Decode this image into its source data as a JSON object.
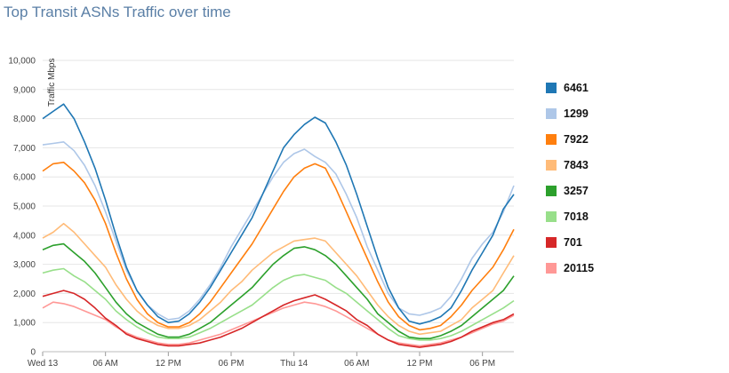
{
  "chart_data": {
    "type": "line",
    "title": "Top Transit ASNs Traffic over time",
    "ylabel": "Traffic Mbps",
    "xlabel": "",
    "ylim": [
      0,
      10000
    ],
    "yticks": [
      0,
      1000,
      2000,
      3000,
      4000,
      5000,
      6000,
      7000,
      8000,
      9000,
      10000
    ],
    "ytick_labels": [
      "0",
      "1,000",
      "2,000",
      "3,000",
      "4,000",
      "5,000",
      "6,000",
      "7,000",
      "8,000",
      "9,000",
      "10,000"
    ],
    "x_hours": [
      0,
      6,
      12,
      18,
      24,
      30,
      36,
      42
    ],
    "x_tick_labels": [
      "Wed 13",
      "06 AM",
      "12 PM",
      "06 PM",
      "Thu 14",
      "06 AM",
      "12 PM",
      "06 PM"
    ],
    "x": [
      0,
      1,
      2,
      3,
      4,
      5,
      6,
      7,
      8,
      9,
      10,
      11,
      12,
      13,
      14,
      15,
      16,
      17,
      18,
      19,
      20,
      21,
      22,
      23,
      24,
      25,
      26,
      27,
      28,
      29,
      30,
      31,
      32,
      33,
      34,
      35,
      36,
      37,
      38,
      39,
      40,
      41,
      42,
      43,
      44,
      45
    ],
    "grid": true,
    "legend_position": "right",
    "series": [
      {
        "name": "6461",
        "color": "#1f77b4",
        "values": [
          8000,
          8250,
          8500,
          8000,
          7200,
          6300,
          5200,
          4000,
          2900,
          2100,
          1600,
          1200,
          1000,
          1050,
          1300,
          1700,
          2200,
          2800,
          3400,
          4000,
          4600,
          5400,
          6200,
          7000,
          7450,
          7800,
          8050,
          7850,
          7200,
          6400,
          5400,
          4300,
          3200,
          2200,
          1500,
          1050,
          950,
          1050,
          1200,
          1500,
          2100,
          2800,
          3400,
          4000,
          4900,
          5400
        ]
      },
      {
        "name": "1299",
        "color": "#aec7e8",
        "values": [
          7100,
          7150,
          7200,
          6900,
          6400,
          5700,
          4800,
          3800,
          2800,
          2100,
          1600,
          1300,
          1100,
          1150,
          1400,
          1800,
          2300,
          2900,
          3600,
          4200,
          4800,
          5400,
          6000,
          6500,
          6800,
          6950,
          6700,
          6500,
          6100,
          5400,
          4600,
          3600,
          2800,
          2000,
          1500,
          1300,
          1250,
          1350,
          1500,
          1900,
          2500,
          3200,
          3700,
          4100,
          4800,
          5700
        ]
      },
      {
        "name": "7922",
        "color": "#ff7f0e",
        "values": [
          6200,
          6450,
          6500,
          6200,
          5800,
          5200,
          4400,
          3400,
          2500,
          1800,
          1300,
          1000,
          850,
          850,
          1000,
          1300,
          1700,
          2200,
          2700,
          3200,
          3700,
          4300,
          4900,
          5500,
          6000,
          6300,
          6450,
          6300,
          5600,
          4800,
          4000,
          3200,
          2400,
          1700,
          1200,
          900,
          750,
          800,
          900,
          1200,
          1600,
          2100,
          2500,
          2900,
          3500,
          4200
        ]
      },
      {
        "name": "7843",
        "color": "#ffbb78",
        "values": [
          3900,
          4100,
          4400,
          4100,
          3700,
          3300,
          2900,
          2300,
          1800,
          1400,
          1100,
          900,
          800,
          800,
          900,
          1100,
          1400,
          1700,
          2100,
          2400,
          2800,
          3100,
          3400,
          3600,
          3800,
          3850,
          3900,
          3800,
          3400,
          3000,
          2600,
          2100,
          1600,
          1200,
          900,
          700,
          600,
          650,
          700,
          900,
          1100,
          1500,
          1800,
          2100,
          2700,
          3300
        ]
      },
      {
        "name": "3257",
        "color": "#2ca02c",
        "values": [
          3500,
          3650,
          3700,
          3400,
          3100,
          2700,
          2200,
          1700,
          1300,
          1000,
          800,
          600,
          500,
          500,
          600,
          800,
          1000,
          1300,
          1600,
          1900,
          2200,
          2600,
          3000,
          3300,
          3550,
          3600,
          3500,
          3300,
          3000,
          2600,
          2200,
          1800,
          1300,
          1000,
          700,
          500,
          450,
          450,
          550,
          700,
          900,
          1200,
          1500,
          1800,
          2100,
          2600
        ]
      },
      {
        "name": "7018",
        "color": "#98df8a",
        "values": [
          2700,
          2800,
          2850,
          2600,
          2400,
          2100,
          1800,
          1400,
          1100,
          850,
          650,
          500,
          450,
          450,
          500,
          650,
          800,
          1000,
          1200,
          1400,
          1600,
          1900,
          2200,
          2450,
          2600,
          2650,
          2550,
          2450,
          2200,
          2000,
          1700,
          1400,
          1100,
          800,
          550,
          450,
          400,
          400,
          450,
          550,
          700,
          900,
          1100,
          1300,
          1500,
          1750
        ]
      },
      {
        "name": "701",
        "color": "#d62728",
        "values": [
          1900,
          2000,
          2100,
          2000,
          1800,
          1500,
          1150,
          900,
          600,
          450,
          350,
          250,
          200,
          200,
          250,
          300,
          400,
          500,
          650,
          800,
          1000,
          1200,
          1400,
          1600,
          1750,
          1850,
          1950,
          1800,
          1600,
          1400,
          1100,
          900,
          600,
          400,
          250,
          200,
          150,
          200,
          250,
          350,
          500,
          700,
          850,
          1000,
          1100,
          1300
        ]
      },
      {
        "name": "20115",
        "color": "#ff9896",
        "values": [
          1500,
          1700,
          1650,
          1550,
          1400,
          1250,
          1100,
          850,
          650,
          500,
          400,
          300,
          250,
          250,
          300,
          400,
          500,
          600,
          750,
          900,
          1050,
          1200,
          1350,
          1500,
          1600,
          1700,
          1650,
          1550,
          1400,
          1200,
          1000,
          800,
          600,
          400,
          300,
          250,
          200,
          250,
          300,
          400,
          500,
          650,
          800,
          950,
          1050,
          1250
        ]
      }
    ]
  }
}
